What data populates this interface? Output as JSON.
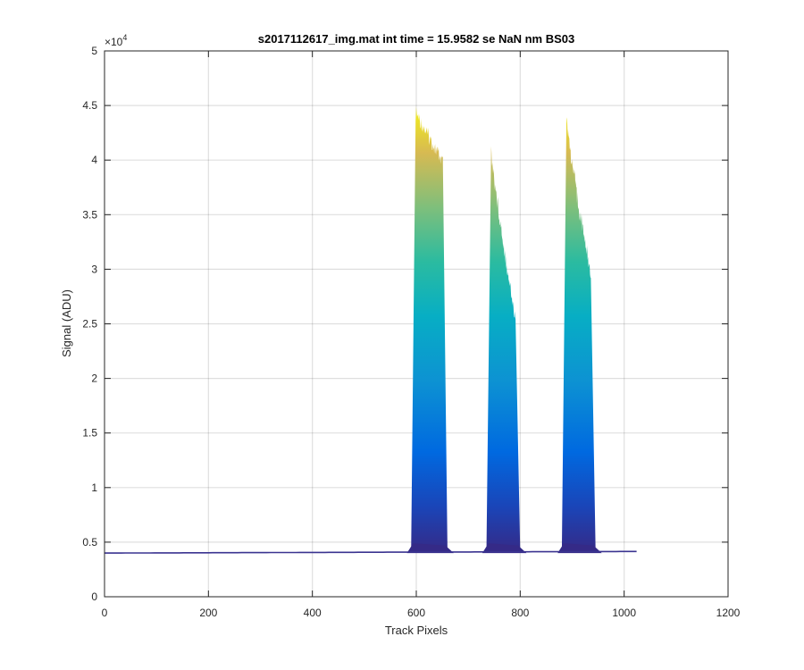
{
  "chart_data": {
    "type": "area",
    "title": "s2017112617_img.mat int time = 15.9582 se  NaN nm BS03",
    "xlabel": "Track Pixels",
    "ylabel": "Signal (ADU)",
    "y_exponent_label": "×10",
    "y_exponent_power": "4",
    "xlim": [
      0,
      1200
    ],
    "ylim": [
      0,
      50000
    ],
    "xticks": [
      0,
      200,
      400,
      600,
      800,
      1000,
      1200
    ],
    "yticks": [
      0,
      5000,
      10000,
      15000,
      20000,
      25000,
      30000,
      35000,
      40000,
      45000,
      50000
    ],
    "ytick_labels": [
      "0",
      "0.5",
      "1",
      "1.5",
      "2",
      "2.5",
      "3",
      "3.5",
      "4",
      "4.5",
      "5"
    ],
    "grid": true,
    "colormap": "parula",
    "baseline_adu": 4000,
    "baseline_x_end": 1024,
    "peaks": [
      {
        "x_start": 590,
        "x_end": 660,
        "max_adu": 45000
      },
      {
        "x_start": 735,
        "x_end": 800,
        "max_adu": 41500
      },
      {
        "x_start": 880,
        "x_end": 945,
        "max_adu": 45000
      }
    ]
  }
}
